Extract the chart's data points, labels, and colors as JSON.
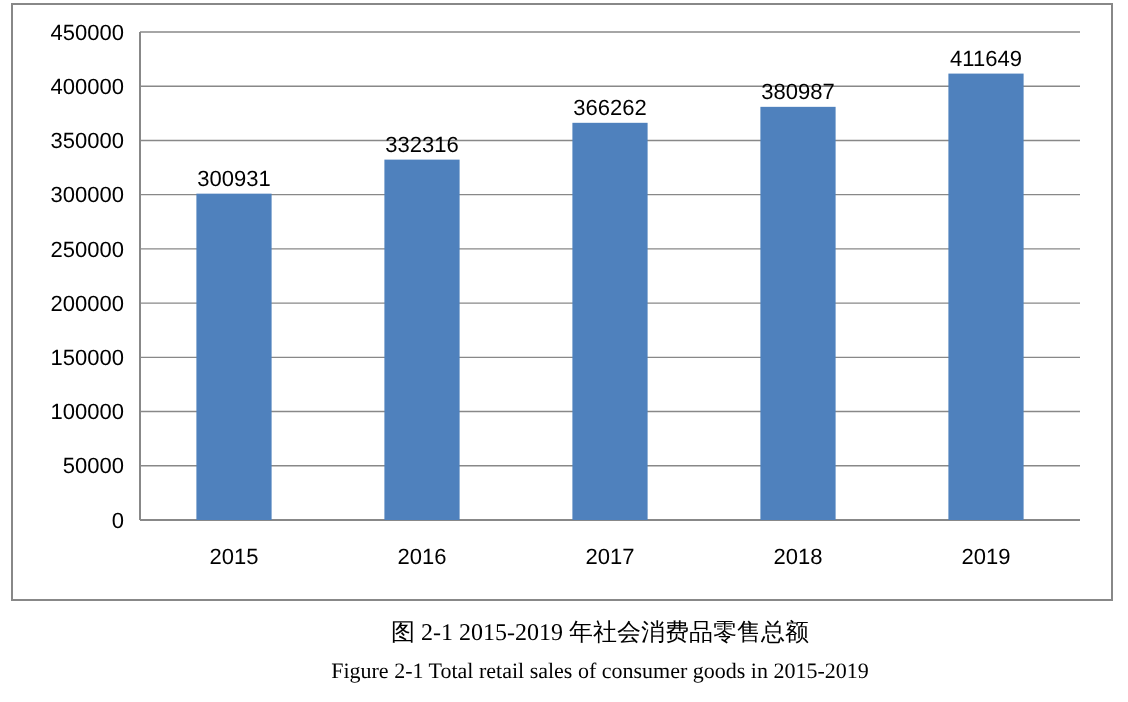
{
  "chart_data": {
    "type": "bar",
    "categories": [
      "2015",
      "2016",
      "2017",
      "2018",
      "2019"
    ],
    "values": [
      300931,
      332316,
      366262,
      380987,
      411649
    ],
    "color": "#4f81bd",
    "ylim": [
      0,
      450000
    ],
    "yticks": [
      0,
      50000,
      100000,
      150000,
      200000,
      250000,
      300000,
      350000,
      400000,
      450000
    ],
    "grid": "y",
    "data_labels": true,
    "annotations": [
      "图 2-1 2015-2019 年社会消费品零售总额",
      "Figure 2-1 Total retail sales of consumer goods in 2015-2019"
    ]
  }
}
